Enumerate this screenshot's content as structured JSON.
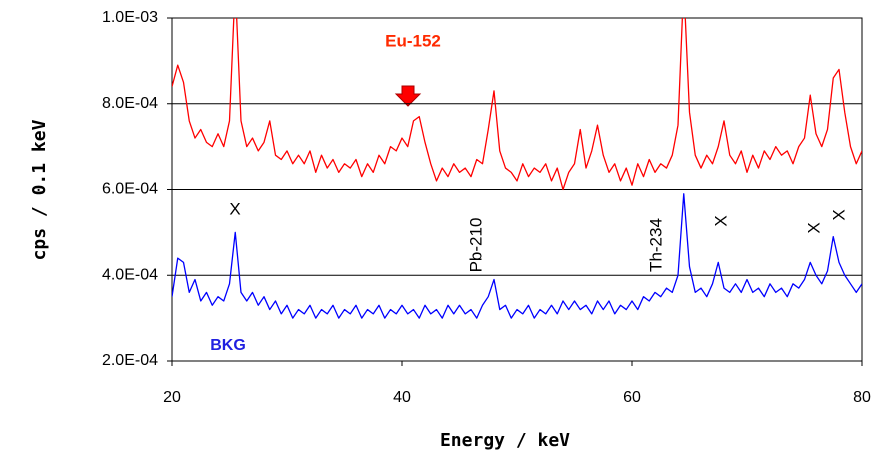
{
  "chart_data": {
    "type": "line",
    "xlabel": "Energy / keV",
    "ylabel": "cps / 0.1 keV",
    "xlim": [
      20,
      80
    ],
    "xticks": [
      20,
      40,
      60,
      80
    ],
    "ylim": [
      0.0002,
      0.001
    ],
    "yticks": [
      {
        "value": 0.0002,
        "label": "2.0E-04"
      },
      {
        "value": 0.0004,
        "label": "4.0E-04"
      },
      {
        "value": 0.0006,
        "label": "6.0E-04"
      },
      {
        "value": 0.0008,
        "label": "8.0E-04"
      },
      {
        "value": 0.001,
        "label": "1.0E-03"
      }
    ],
    "grid": true,
    "annotations": [
      "X",
      "Pb-210",
      "Th-234",
      "X",
      "X",
      "X"
    ],
    "x": [
      20,
      20.5,
      21,
      21.5,
      22,
      22.5,
      23,
      23.5,
      24,
      24.5,
      25,
      25.5,
      26,
      26.5,
      27,
      27.5,
      28,
      28.5,
      29,
      29.5,
      30,
      30.5,
      31,
      31.5,
      32,
      32.5,
      33,
      33.5,
      34,
      34.5,
      35,
      35.5,
      36,
      36.5,
      37,
      37.5,
      38,
      38.5,
      39,
      39.5,
      40,
      40.5,
      41,
      41.5,
      42,
      42.5,
      43,
      43.5,
      44,
      44.5,
      45,
      45.5,
      46,
      46.5,
      47,
      47.5,
      48,
      48.5,
      49,
      49.5,
      50,
      50.5,
      51,
      51.5,
      52,
      52.5,
      53,
      53.5,
      54,
      54.5,
      55,
      55.5,
      56,
      56.5,
      57,
      57.5,
      58,
      58.5,
      59,
      59.5,
      60,
      60.5,
      61,
      61.5,
      62,
      62.5,
      63,
      63.5,
      64,
      64.5,
      65,
      65.5,
      66,
      66.5,
      67,
      67.5,
      68,
      68.5,
      69,
      69.5,
      70,
      70.5,
      71,
      71.5,
      72,
      72.5,
      73,
      73.5,
      74,
      74.5,
      75,
      75.5,
      76,
      76.5,
      77,
      77.5,
      78,
      78.5,
      79,
      79.5,
      80
    ],
    "series": [
      {
        "name": "Eu-152",
        "color": "#ff0000",
        "values": [
          0.00084,
          0.00089,
          0.00085,
          0.00076,
          0.00072,
          0.00074,
          0.00071,
          0.0007,
          0.00073,
          0.0007,
          0.00076,
          0.00108,
          0.00076,
          0.0007,
          0.00072,
          0.00069,
          0.00071,
          0.00076,
          0.00068,
          0.00067,
          0.00069,
          0.00066,
          0.00068,
          0.00066,
          0.00069,
          0.00064,
          0.00068,
          0.00065,
          0.00067,
          0.00064,
          0.00066,
          0.00065,
          0.00067,
          0.00063,
          0.00066,
          0.00064,
          0.00068,
          0.00066,
          0.0007,
          0.00069,
          0.00072,
          0.0007,
          0.00076,
          0.00077,
          0.00071,
          0.00066,
          0.00062,
          0.00065,
          0.00063,
          0.00066,
          0.00064,
          0.00065,
          0.00063,
          0.00067,
          0.00066,
          0.00074,
          0.00083,
          0.00069,
          0.00065,
          0.00064,
          0.00062,
          0.00066,
          0.00063,
          0.00065,
          0.00064,
          0.00066,
          0.00062,
          0.00065,
          0.0006,
          0.00064,
          0.00066,
          0.00074,
          0.00065,
          0.00069,
          0.00075,
          0.00068,
          0.00064,
          0.00066,
          0.00062,
          0.00065,
          0.00061,
          0.00066,
          0.00063,
          0.00067,
          0.00064,
          0.00066,
          0.00065,
          0.00068,
          0.00075,
          0.00108,
          0.00078,
          0.00068,
          0.00065,
          0.00068,
          0.00066,
          0.0007,
          0.00076,
          0.00068,
          0.00066,
          0.00069,
          0.00064,
          0.00068,
          0.00065,
          0.00069,
          0.00067,
          0.0007,
          0.00068,
          0.00069,
          0.00066,
          0.0007,
          0.00072,
          0.00082,
          0.00073,
          0.0007,
          0.00074,
          0.00086,
          0.00088,
          0.00078,
          0.0007,
          0.00066,
          0.00069
        ]
      },
      {
        "name": "BKG",
        "color": "#0000ff",
        "values": [
          0.00035,
          0.00044,
          0.00043,
          0.00036,
          0.00039,
          0.00034,
          0.00036,
          0.00033,
          0.00035,
          0.00034,
          0.00038,
          0.0005,
          0.00036,
          0.00034,
          0.00036,
          0.00033,
          0.00035,
          0.00032,
          0.00034,
          0.00031,
          0.00033,
          0.0003,
          0.00032,
          0.00031,
          0.00033,
          0.0003,
          0.00032,
          0.00031,
          0.00033,
          0.0003,
          0.00032,
          0.00031,
          0.00033,
          0.0003,
          0.00032,
          0.00031,
          0.00033,
          0.0003,
          0.00032,
          0.00031,
          0.00033,
          0.00031,
          0.00032,
          0.0003,
          0.00033,
          0.00031,
          0.00032,
          0.0003,
          0.00033,
          0.00031,
          0.00033,
          0.00031,
          0.00032,
          0.0003,
          0.00033,
          0.00035,
          0.00039,
          0.00032,
          0.00033,
          0.0003,
          0.00032,
          0.00031,
          0.00033,
          0.0003,
          0.00032,
          0.00031,
          0.00033,
          0.00031,
          0.00034,
          0.00032,
          0.00034,
          0.00032,
          0.00033,
          0.00031,
          0.00034,
          0.00032,
          0.00034,
          0.00031,
          0.00033,
          0.00032,
          0.00034,
          0.00032,
          0.00035,
          0.00034,
          0.00036,
          0.00035,
          0.00037,
          0.00036,
          0.0004,
          0.00059,
          0.00042,
          0.00036,
          0.00037,
          0.00035,
          0.00038,
          0.00043,
          0.00037,
          0.00036,
          0.00038,
          0.00036,
          0.00039,
          0.00036,
          0.00037,
          0.00035,
          0.00038,
          0.00036,
          0.00037,
          0.00035,
          0.00038,
          0.00037,
          0.00039,
          0.00043,
          0.0004,
          0.00038,
          0.00041,
          0.00049,
          0.00043,
          0.0004,
          0.00038,
          0.00036,
          0.00038
        ]
      }
    ]
  }
}
